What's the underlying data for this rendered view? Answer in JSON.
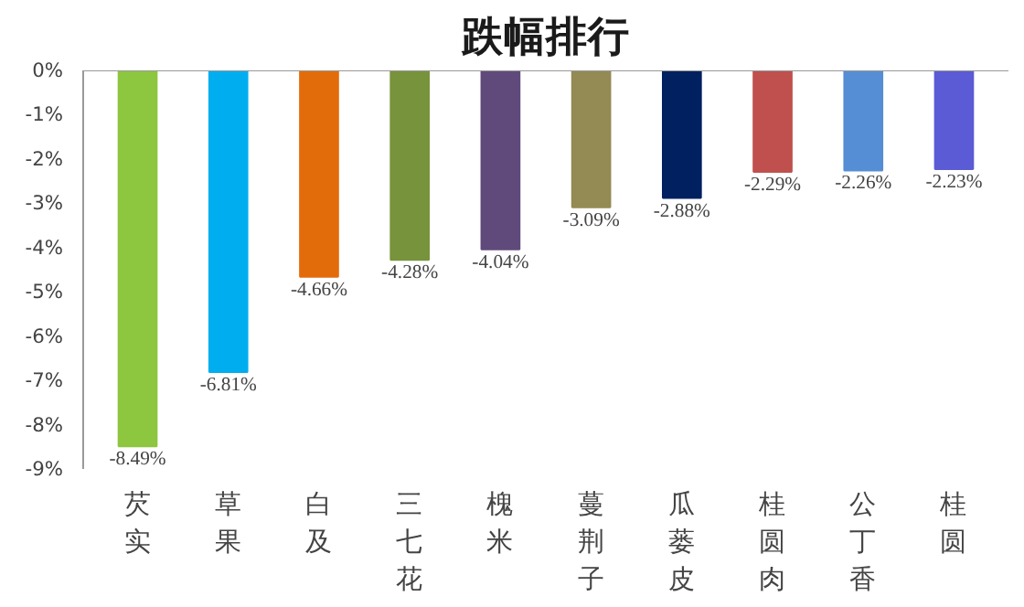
{
  "chart_data": {
    "type": "bar",
    "title": "跌幅排行",
    "categories": [
      "芡实",
      "草果",
      "白及",
      "三七花",
      "槐米",
      "蔓荆子",
      "瓜蒌皮",
      "桂圆肉",
      "公丁香",
      "桂圆"
    ],
    "values": [
      -8.49,
      -6.81,
      -4.66,
      -4.28,
      -4.04,
      -3.09,
      -2.88,
      -2.29,
      -2.26,
      -2.23
    ],
    "colors": [
      "#8dc63f",
      "#00aeef",
      "#e36c0a",
      "#77933c",
      "#604a7b",
      "#948a54",
      "#002060",
      "#c0504d",
      "#558ed5",
      "#5b5bd6"
    ],
    "value_labels": [
      "-8.49%",
      "-6.81%",
      "-4.66%",
      "-4.28%",
      "-4.04%",
      "-3.09%",
      "-2.88%",
      "-2.29%",
      "-2.26%",
      "-2.23%"
    ],
    "ylim": [
      -9,
      0
    ],
    "yticks": [
      {
        "value": 0,
        "label": "0%"
      },
      {
        "value": -1,
        "label": "-1%"
      },
      {
        "value": -2,
        "label": "-2%"
      },
      {
        "value": -3,
        "label": "-3%"
      },
      {
        "value": -4,
        "label": "-4%"
      },
      {
        "value": -5,
        "label": "-5%"
      },
      {
        "value": -6,
        "label": "-6%"
      },
      {
        "value": -7,
        "label": "-7%"
      },
      {
        "value": -8,
        "label": "-8%"
      },
      {
        "value": -9,
        "label": "-9%"
      }
    ],
    "grid": false
  }
}
